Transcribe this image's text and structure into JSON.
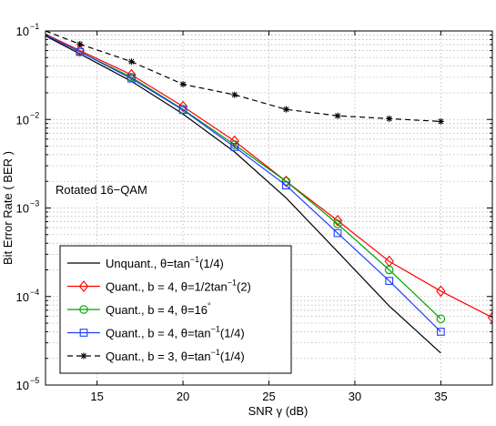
{
  "chart_data": {
    "type": "line",
    "xlabel": "SNR γ (dB)",
    "ylabel": "Bit Error Rate ( BER )",
    "annotation": "Rotated 16−QAM",
    "xlim": [
      12,
      38
    ],
    "ylim": [
      1e-05,
      0.1
    ],
    "yscale": "log",
    "grid": true,
    "legend_position": "bottom-left",
    "xticks": [
      15,
      20,
      25,
      30,
      35
    ],
    "xtick_labels": [
      "15",
      "20",
      "25",
      "30",
      "35"
    ],
    "yticks": [
      1e-05,
      0.0001,
      0.001,
      0.01,
      0.1
    ],
    "ytick_labels": [
      {
        "base": "10",
        "exp": "−5"
      },
      {
        "base": "10",
        "exp": "−4"
      },
      {
        "base": "10",
        "exp": "−3"
      },
      {
        "base": "10",
        "exp": "−2"
      },
      {
        "base": "10",
        "exp": "−1"
      }
    ],
    "series": [
      {
        "name": "Unquant., θ=tan⁻¹(1/4)",
        "color": "#000000",
        "dash": "solid",
        "marker": "none",
        "x": [
          12,
          14,
          17,
          20,
          23,
          26,
          29,
          32,
          35
        ],
        "y": [
          0.088,
          0.055,
          0.027,
          0.0115,
          0.0043,
          0.0013,
          0.00032,
          7.8e-05,
          2.3e-05
        ]
      },
      {
        "name": "Quant., b = 4, θ=1/2tan⁻¹(2)",
        "color": "#ff0000",
        "dash": "solid",
        "marker": "diamond",
        "x": [
          12,
          14,
          17,
          20,
          23,
          26,
          29,
          32,
          35,
          38
        ],
        "y": [
          0.092,
          0.06,
          0.032,
          0.014,
          0.0057,
          0.002,
          0.00072,
          0.00025,
          0.000115,
          5.8e-05
        ]
      },
      {
        "name": "Quant., b = 4, θ=16°",
        "color": "#00a000",
        "dash": "solid",
        "marker": "circle",
        "x": [
          12,
          14,
          17,
          20,
          23,
          26,
          29,
          32,
          35
        ],
        "y": [
          0.09,
          0.058,
          0.03,
          0.013,
          0.0052,
          0.002,
          0.00066,
          0.0002,
          5.6e-05
        ]
      },
      {
        "name": "Quant., b = 4, θ=tan⁻¹(1/4)",
        "color": "#1f3fff",
        "dash": "solid",
        "marker": "square",
        "x": [
          12,
          14,
          17,
          20,
          23,
          26,
          29,
          32,
          35
        ],
        "y": [
          0.09,
          0.058,
          0.029,
          0.0128,
          0.0049,
          0.0018,
          0.00052,
          0.00015,
          4e-05
        ]
      },
      {
        "name": "Quant., b = 3, θ=tan⁻¹(1/4)",
        "color": "#000000",
        "dash": "dashed",
        "marker": "star",
        "x": [
          12,
          14,
          17,
          20,
          23,
          26,
          29,
          32,
          35
        ],
        "y": [
          0.1,
          0.071,
          0.045,
          0.025,
          0.019,
          0.013,
          0.011,
          0.0102,
          0.0095
        ]
      }
    ],
    "legend": [
      {
        "label": "Unquant., θ=tan",
        "sup": "−1",
        "tail": "(1/4)"
      },
      {
        "label": "Quant., b = 4, θ=1/2tan",
        "sup": "−1",
        "tail": "(2)"
      },
      {
        "label": "Quant., b = 4, θ=16",
        "sup": "°",
        "tail": ""
      },
      {
        "label": "Quant., b = 4, θ=tan",
        "sup": "−1",
        "tail": "(1/4)"
      },
      {
        "label": "Quant., b = 3, θ=tan",
        "sup": "−1",
        "tail": "(1/4)"
      }
    ]
  }
}
